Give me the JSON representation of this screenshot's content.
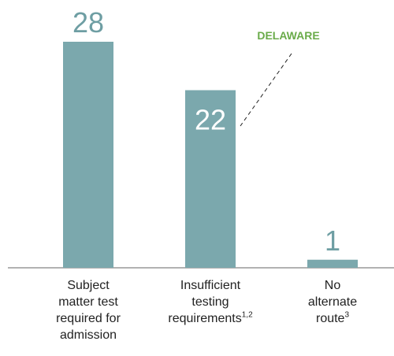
{
  "chart_data": {
    "type": "bar",
    "annotation": "DELAWARE",
    "categories": [
      "Subject matter test required for admission",
      "Insufficient testing requirements",
      "No alternate route"
    ],
    "footnote_refs": [
      null,
      "1,2",
      "3"
    ],
    "values": [
      28,
      22,
      1
    ],
    "value_label_position": [
      "outside",
      "inside",
      "outside"
    ],
    "color": "#7ba8ad",
    "label_color": "#6e9ea3",
    "annotation_color": "#6aab4a",
    "grid": false
  }
}
